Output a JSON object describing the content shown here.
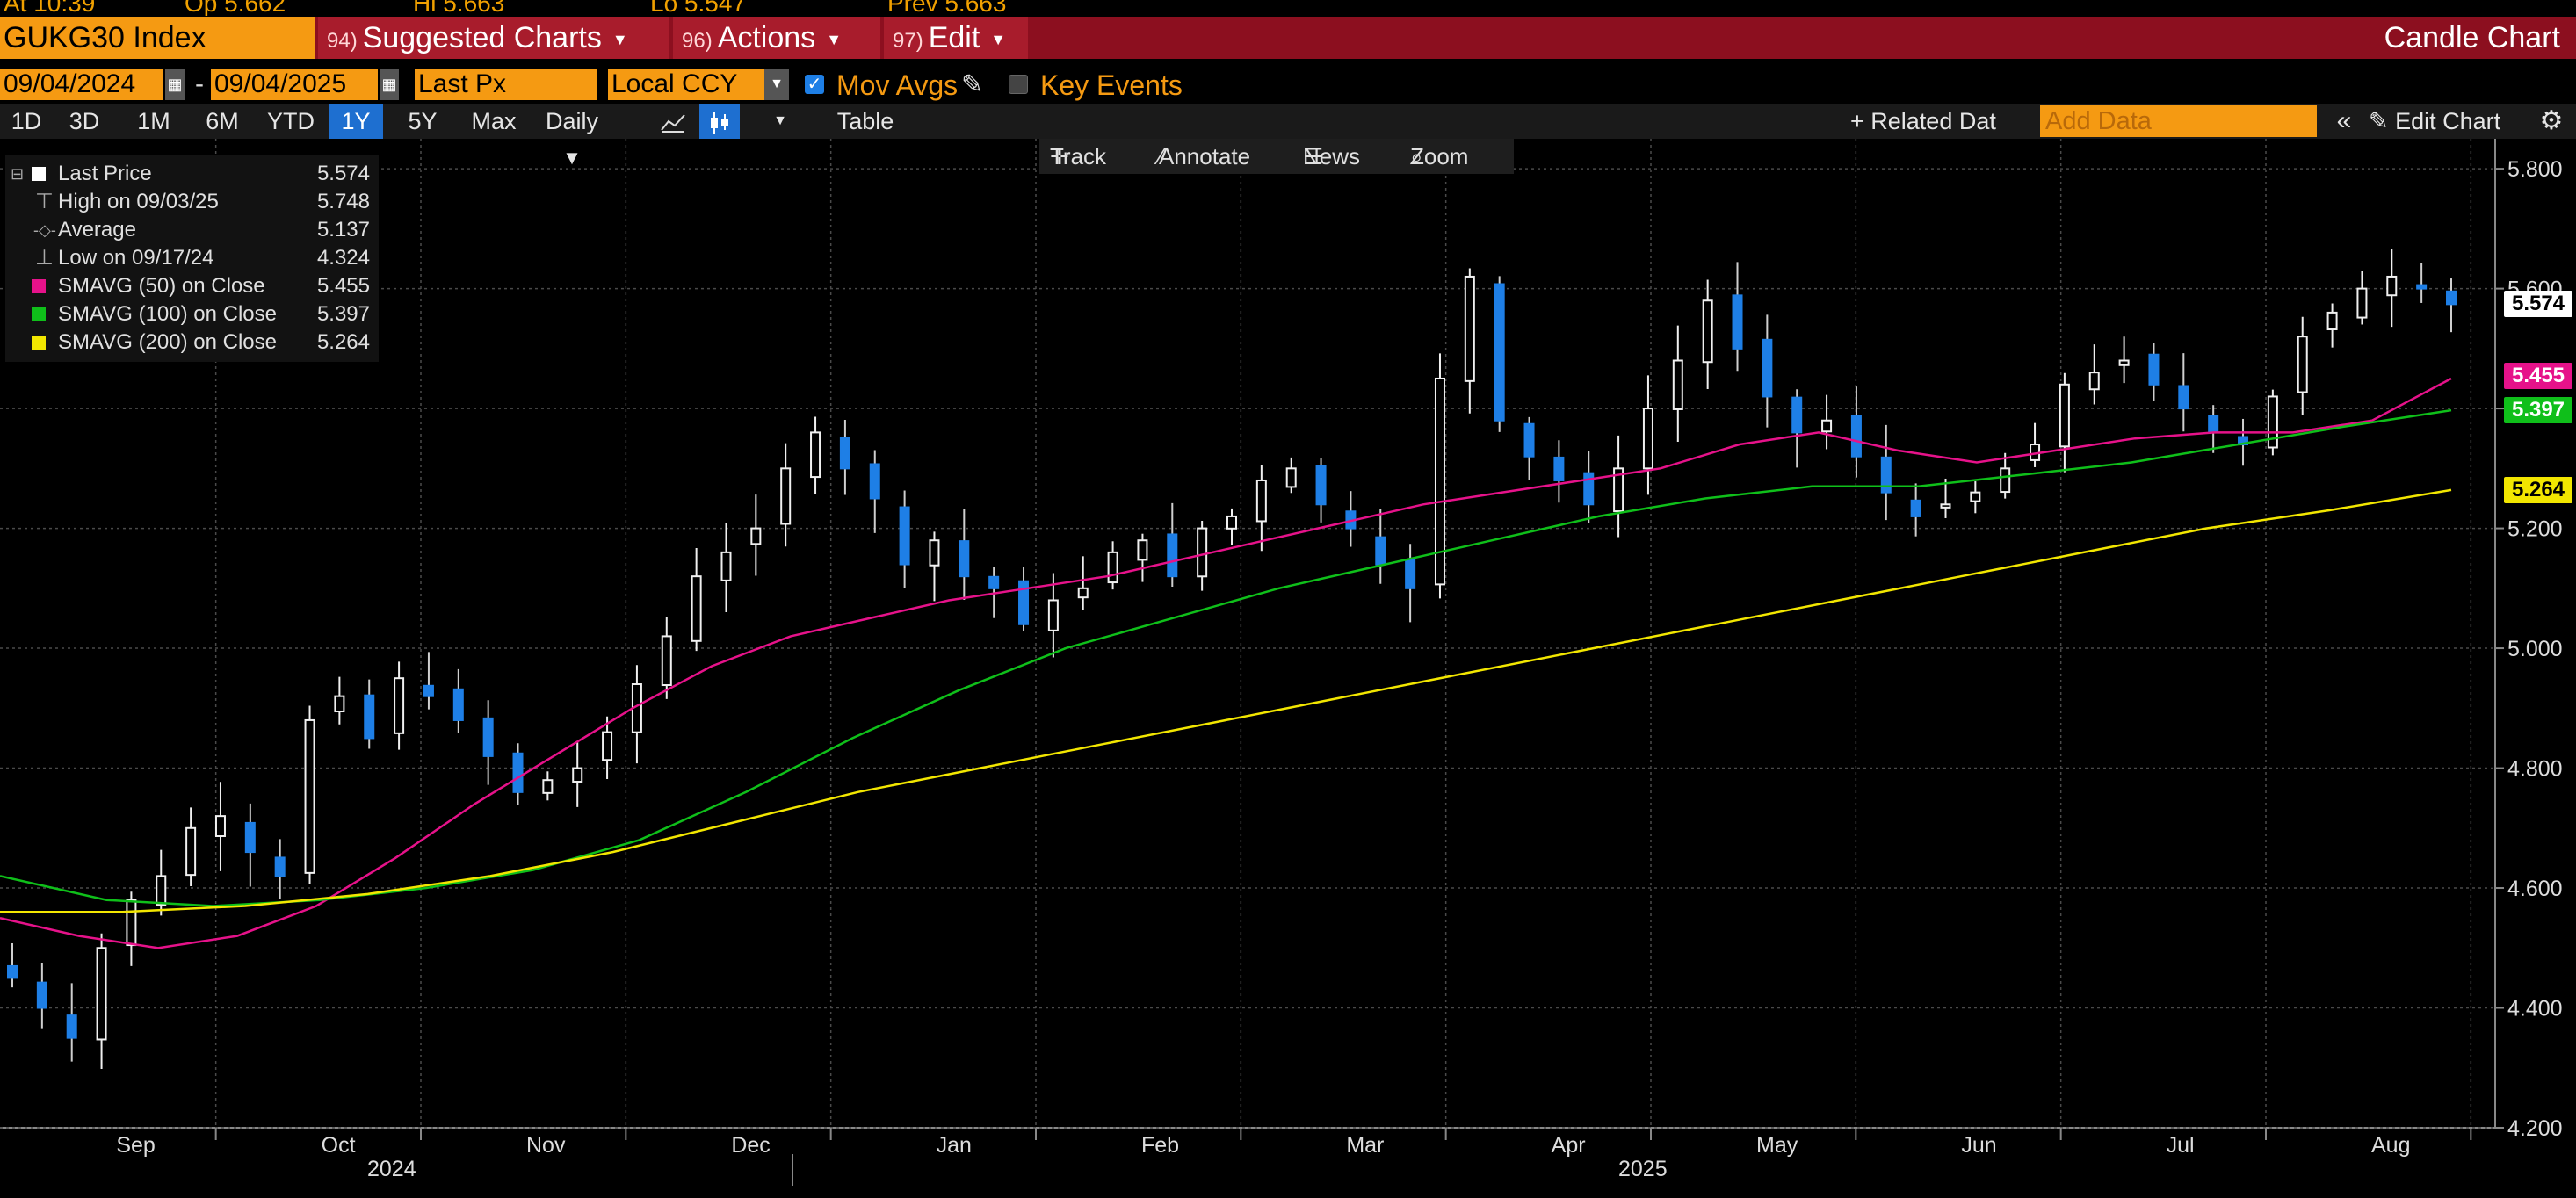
{
  "top_strip": {
    "items": [
      "At  10:39",
      "Op  5.662",
      "Hi  5.663",
      "Lo  5.547",
      "Prev  5.663"
    ]
  },
  "header": {
    "ticker": "GUKG30 Index",
    "menus": [
      {
        "num": "94)",
        "label": "Suggested Charts"
      },
      {
        "num": "96)",
        "label": "Actions"
      },
      {
        "num": "97)",
        "label": "Edit"
      }
    ],
    "chart_type": "Candle Chart"
  },
  "controls": {
    "start_date": "09/04/2024",
    "date_sep": "-",
    "end_date": "09/04/2025",
    "price_field": "Last Px",
    "currency": "Local CCY",
    "mov_avgs_label": "Mov Avgs",
    "mov_avgs_checked": true,
    "key_events_label": "Key Events",
    "key_events_checked": false
  },
  "ranges": {
    "buttons": [
      "1D",
      "3D",
      "1M",
      "6M",
      "YTD",
      "1Y",
      "5Y",
      "Max"
    ],
    "active": "1Y",
    "period": "Daily",
    "table_label": "Table",
    "related_label": "+ Related Dat",
    "add_data_placeholder": "Add Data",
    "edit_chart_label": "Edit Chart"
  },
  "toolbar": {
    "track": "Track",
    "annotate": "Annotate",
    "news": "News",
    "zoom": "Zoom"
  },
  "legend": [
    {
      "name": "Last Price",
      "value": "5.574",
      "color": "#ffffff",
      "marker": "square"
    },
    {
      "name": "High on 09/03/25",
      "value": "5.748",
      "color": "#bbbbbb",
      "marker": "high-icon"
    },
    {
      "name": "Average",
      "value": "5.137",
      "color": "#bbbbbb",
      "marker": "average-icon"
    },
    {
      "name": "Low on 09/17/24",
      "value": "4.324",
      "color": "#bbbbbb",
      "marker": "low-icon"
    },
    {
      "name": "SMAVG (50)  on Close",
      "value": "5.455",
      "color": "#e6128a",
      "marker": "square"
    },
    {
      "name": "SMAVG (100)  on Close",
      "value": "5.397",
      "color": "#0fbf1a",
      "marker": "square"
    },
    {
      "name": "SMAVG (200)  on Close",
      "value": "5.264",
      "color": "#f2e600",
      "marker": "square"
    }
  ],
  "axis_tags": [
    {
      "value": "5.574",
      "bg": "#ffffff",
      "fg": "#000000"
    },
    {
      "value": "5.455",
      "bg": "#e6128a",
      "fg": "#ffffff"
    },
    {
      "value": "5.397",
      "bg": "#0fbf1a",
      "fg": "#ffffff"
    },
    {
      "value": "5.264",
      "bg": "#f2e600",
      "fg": "#000000"
    }
  ],
  "years": [
    "2024",
    "2025"
  ],
  "colors": {
    "up_candle": "#f0f0f0",
    "down_candle": "#1e7fe6",
    "grid": "#4a4a4a",
    "sma50": "#e6128a",
    "sma100": "#0fbf1a",
    "sma200": "#f2e600",
    "header_red": "#8c0f1f",
    "ticker_orange": "#f59a12"
  },
  "chart_data": {
    "type": "candlestick",
    "title": "GUKG30 Index",
    "x_range": [
      "2024-09-04",
      "2025-09-04"
    ],
    "ylim": [
      4.2,
      5.85
    ],
    "yticks": [
      4.2,
      4.4,
      4.6,
      4.8,
      5.0,
      5.2,
      5.4,
      5.6,
      5.8
    ],
    "ytick_labels": [
      "4.200",
      "4.400",
      "4.600",
      "4.800",
      "5.000",
      "5.200",
      "5.400",
      "5.600",
      "5.800"
    ],
    "month_labels": [
      "Sep",
      "Oct",
      "Nov",
      "Dec",
      "Jan",
      "Feb",
      "Mar",
      "Apr",
      "May",
      "Jun",
      "Jul",
      "Aug"
    ],
    "grid": true,
    "close_approx": [
      4.45,
      4.4,
      4.35,
      4.5,
      4.58,
      4.62,
      4.7,
      4.72,
      4.66,
      4.62,
      4.88,
      4.92,
      4.85,
      4.95,
      4.92,
      4.88,
      4.82,
      4.76,
      4.78,
      4.8,
      4.86,
      4.94,
      5.02,
      5.12,
      5.16,
      5.2,
      5.3,
      5.36,
      5.3,
      5.25,
      5.14,
      5.18,
      5.12,
      5.1,
      5.04,
      5.08,
      5.1,
      5.16,
      5.18,
      5.12,
      5.2,
      5.22,
      5.28,
      5.3,
      5.24,
      5.2,
      5.14,
      5.1,
      5.45,
      5.62,
      5.38,
      5.32,
      5.28,
      5.24,
      5.3,
      5.4,
      5.48,
      5.58,
      5.5,
      5.42,
      5.36,
      5.38,
      5.32,
      5.26,
      5.22,
      5.24,
      5.26,
      5.3,
      5.34,
      5.44,
      5.46,
      5.48,
      5.44,
      5.4,
      5.36,
      5.34,
      5.42,
      5.52,
      5.56,
      5.6,
      5.62,
      5.6,
      5.574
    ],
    "series": [
      {
        "name": "SMAVG (50)  on Close",
        "values": [
          4.55,
          4.52,
          4.5,
          4.52,
          4.57,
          4.65,
          4.74,
          4.82,
          4.9,
          4.97,
          5.02,
          5.05,
          5.08,
          5.1,
          5.12,
          5.15,
          5.18,
          5.21,
          5.24,
          5.26,
          5.28,
          5.3,
          5.34,
          5.36,
          5.33,
          5.31,
          5.33,
          5.35,
          5.36,
          5.36,
          5.38,
          5.45
        ]
      },
      {
        "name": "SMAVG (100)  on Close",
        "values": [
          4.62,
          4.58,
          4.57,
          4.58,
          4.6,
          4.63,
          4.68,
          4.76,
          4.85,
          4.93,
          5.0,
          5.05,
          5.1,
          5.14,
          5.18,
          5.22,
          5.25,
          5.27,
          5.27,
          5.29,
          5.31,
          5.34,
          5.37,
          5.397
        ]
      },
      {
        "name": "SMAVG (200)  on Close",
        "values": [
          4.56,
          4.56,
          4.57,
          4.59,
          4.62,
          4.66,
          4.71,
          4.76,
          4.8,
          4.84,
          4.88,
          4.92,
          4.96,
          5.0,
          5.04,
          5.08,
          5.12,
          5.16,
          5.2,
          5.23,
          5.264
        ]
      }
    ]
  }
}
